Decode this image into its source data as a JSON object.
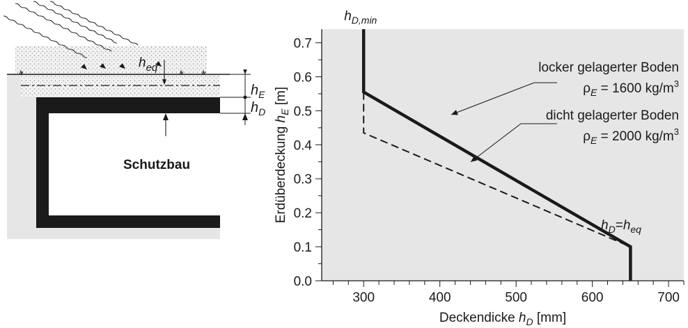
{
  "diagram": {
    "label_heq_main": "h",
    "label_heq_sub": "eq",
    "label_hE_main": "h",
    "label_hE_sub": "E",
    "label_hD_main": "h",
    "label_hD_sub": "D",
    "building_label": "Schutzbau"
  },
  "colors": {
    "plot_background": "#e6e6e6",
    "soil": "#e6e6e6",
    "structure": "#1a1a1a",
    "line": "#1a1a1a"
  },
  "chart_data": {
    "type": "line",
    "xlabel_main": "Deckendicke ",
    "xlabel_var": "h",
    "xlabel_sub": "D",
    "xlabel_unit": " [mm]",
    "ylabel_main": "Erdüberdeckung ",
    "ylabel_var": "h",
    "ylabel_sub": "E",
    "ylabel_unit": " [m]",
    "xlim": [
      245,
      720
    ],
    "ylim": [
      0.0,
      0.74
    ],
    "xticks": [
      "300",
      "400",
      "500",
      "600",
      "700"
    ],
    "yticks": [
      "0.0",
      "0.1",
      "0.2",
      "0.3",
      "0.4",
      "0.5",
      "0.6",
      "0.7"
    ],
    "grid": false,
    "series": [
      {
        "name": "locker gelagerter Boden",
        "style": "solid",
        "points": [
          [
            300,
            0.74
          ],
          [
            300,
            0.555
          ],
          [
            650,
            0.1
          ],
          [
            650,
            0.0
          ]
        ]
      },
      {
        "name": "dicht gelagerter Boden",
        "style": "dashed",
        "points": [
          [
            300,
            0.555
          ],
          [
            300,
            0.435
          ],
          [
            650,
            0.1
          ]
        ]
      }
    ],
    "annotations": {
      "hDmin_main": "h",
      "hDmin_sub": "D,min",
      "loose_title": "locker gelagerter Boden",
      "loose_rho": "ρ",
      "loose_rho_sub": "E",
      "loose_value": " = 1600 kg/m",
      "loose_sup": "3",
      "dense_title": "dicht gelagerter Boden",
      "dense_rho": "ρ",
      "dense_rho_sub": "E",
      "dense_value": " = 2000 kg/m",
      "dense_sup": "3",
      "hDheq_main": "h",
      "hDheq_sub": "D",
      "hDheq_eq": "=",
      "hDheq_rhs": "h",
      "hDheq_rhs_sub": "eq"
    }
  }
}
